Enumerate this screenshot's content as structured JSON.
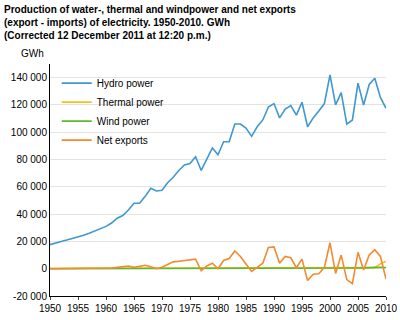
{
  "chart_data": {
    "type": "line",
    "title": "Production of water-, thermal and windpower and net exports\n(export - imports) of electricity. 1950-2010. GWh\n(Corrected 12 December 2011 at 12:20 p.m.)",
    "ylabel": "GWh",
    "x": [
      1950,
      1951,
      1952,
      1953,
      1954,
      1955,
      1956,
      1957,
      1958,
      1959,
      1960,
      1961,
      1962,
      1963,
      1964,
      1965,
      1966,
      1967,
      1968,
      1969,
      1970,
      1971,
      1972,
      1973,
      1974,
      1975,
      1976,
      1977,
      1978,
      1979,
      1980,
      1981,
      1982,
      1983,
      1984,
      1985,
      1986,
      1987,
      1988,
      1989,
      1990,
      1991,
      1992,
      1993,
      1994,
      1995,
      1996,
      1997,
      1998,
      1999,
      2000,
      2001,
      2002,
      2003,
      2004,
      2005,
      2006,
      2007,
      2008,
      2009,
      2010
    ],
    "series": [
      {
        "name": "Hydro power",
        "color": "#3f98cf",
        "values": [
          17600,
          19000,
          20000,
          21000,
          22000,
          23000,
          24500,
          26000,
          27500,
          29000,
          31000,
          33500,
          37000,
          39000,
          43000,
          48000,
          48000,
          53000,
          59000,
          57000,
          57500,
          63000,
          67000,
          72000,
          76000,
          77000,
          82000,
          72000,
          80500,
          88500,
          83500,
          93000,
          93000,
          106000,
          106000,
          103000,
          97000,
          104000,
          109000,
          118500,
          121000,
          110500,
          117000,
          119500,
          112500,
          122000,
          104000,
          110500,
          115500,
          121000,
          142000,
          120000,
          129000,
          106000,
          109000,
          136000,
          120000,
          135000,
          139500,
          125500,
          117500
        ]
      },
      {
        "name": "Thermal power",
        "color": "#f0c419",
        "values": [
          300,
          300,
          300,
          300,
          300,
          300,
          300,
          300,
          300,
          300,
          300,
          300,
          300,
          300,
          300,
          300,
          300,
          300,
          300,
          300,
          300,
          300,
          300,
          300,
          300,
          300,
          300,
          300,
          300,
          300,
          300,
          300,
          300,
          300,
          300,
          300,
          300,
          300,
          300,
          300,
          400,
          400,
          400,
          400,
          400,
          500,
          500,
          500,
          500,
          500,
          500,
          500,
          600,
          600,
          700,
          700,
          800,
          900,
          1000,
          3500,
          5500
        ]
      },
      {
        "name": "Wind power",
        "color": "#5cb82e",
        "values": [
          0,
          0,
          0,
          0,
          0,
          0,
          0,
          0,
          0,
          0,
          0,
          0,
          0,
          0,
          0,
          0,
          0,
          0,
          0,
          0,
          0,
          0,
          0,
          0,
          0,
          0,
          0,
          0,
          0,
          0,
          0,
          0,
          0,
          0,
          0,
          0,
          0,
          0,
          0,
          0,
          0,
          0,
          0,
          0,
          0,
          0,
          0,
          0,
          0,
          0,
          30,
          30,
          80,
          200,
          250,
          500,
          600,
          900,
          900,
          1000,
          900
        ]
      },
      {
        "name": "Net exports",
        "color": "#f28a30",
        "values": [
          0,
          0,
          0,
          0,
          0,
          0,
          0,
          0,
          0,
          0,
          0,
          500,
          1000,
          1500,
          2000,
          1000,
          1500,
          2500,
          1500,
          0,
          1000,
          3000,
          5000,
          5500,
          6000,
          6500,
          7000,
          -1500,
          2000,
          4000,
          0,
          6000,
          7500,
          13000,
          9000,
          3500,
          -2000,
          1000,
          4000,
          15500,
          16000,
          4000,
          9000,
          8000,
          700,
          7000,
          -8700,
          -4000,
          -3700,
          1000,
          19000,
          -3500,
          10000,
          -8000,
          -11000,
          12000,
          -1000,
          10000,
          13900,
          9000,
          -7500
        ]
      }
    ],
    "xlim": [
      1950,
      2010
    ],
    "xticks": [
      1950,
      1955,
      1960,
      1965,
      1970,
      1975,
      1980,
      1985,
      1990,
      1995,
      2000,
      2005,
      2010
    ],
    "ylim": [
      -20000,
      150000
    ],
    "yticks": [
      {
        "value": -20000,
        "label": "-20 000"
      },
      0,
      {
        "value": 20000,
        "label": "20 000"
      },
      {
        "value": 40000,
        "label": "40 000"
      },
      {
        "value": 60000,
        "label": "60 000"
      },
      {
        "value": 80000,
        "label": "80 000"
      },
      {
        "value": 100000,
        "label": "100 000"
      },
      {
        "value": 120000,
        "label": "120 000"
      },
      {
        "value": 140000,
        "label": "140 000"
      }
    ],
    "grid": true,
    "legend": "top-left"
  }
}
